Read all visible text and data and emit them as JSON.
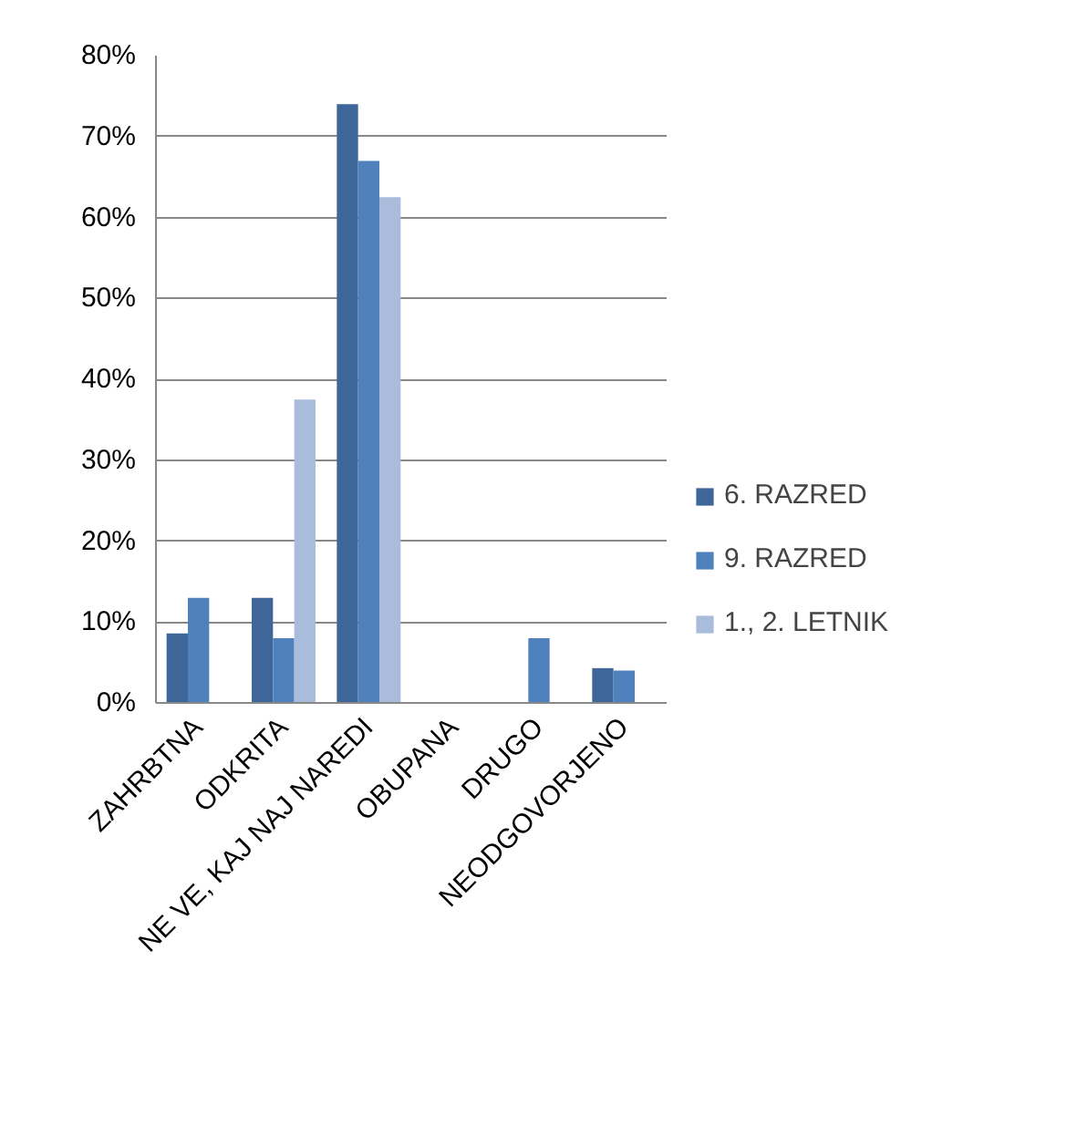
{
  "chart_data": {
    "type": "bar",
    "categories": [
      "ZAHRBTNA",
      "ODKRITA",
      "NE VE, KAJ NAJ NAREDI",
      "OBUPANA",
      "DRUGO",
      "NEODGOVORJENO"
    ],
    "series": [
      {
        "name": "6. RAZRED",
        "color": "#3f6698",
        "values": [
          8.6,
          13,
          74,
          null,
          null,
          4.3
        ]
      },
      {
        "name": "9. RAZRED",
        "color": "#4f81bd",
        "values": [
          13,
          8,
          67,
          null,
          8,
          4
        ]
      },
      {
        "name": "1., 2. LETNIK",
        "color": "#a9bcdb",
        "values": [
          null,
          37.5,
          62.5,
          null,
          null,
          null
        ]
      }
    ],
    "ylim": [
      0,
      80
    ],
    "yticks": [
      {
        "value": 0,
        "label": "0%"
      },
      {
        "value": 10,
        "label": "10%"
      },
      {
        "value": 20,
        "label": "20%"
      },
      {
        "value": 30,
        "label": "30%"
      },
      {
        "value": 40,
        "label": "40%"
      },
      {
        "value": 50,
        "label": "50%"
      },
      {
        "value": 60,
        "label": "60%"
      },
      {
        "value": 70,
        "label": "70%"
      },
      {
        "value": 80,
        "label": "80%"
      }
    ],
    "grid": "y",
    "legend": "right"
  }
}
